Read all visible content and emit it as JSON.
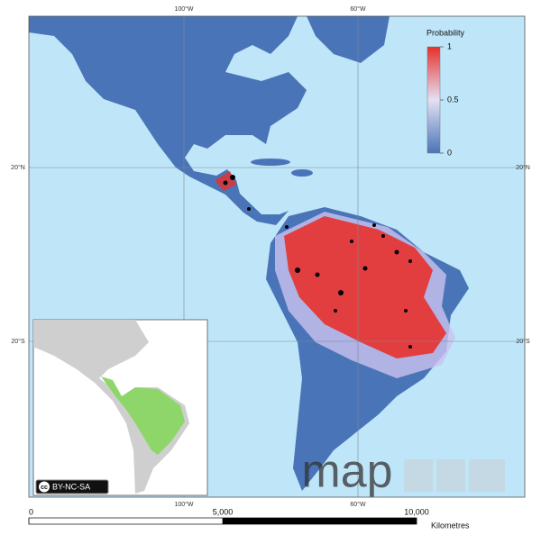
{
  "map": {
    "graticule": {
      "top": [
        "100°W",
        "60°W"
      ],
      "bottom": [
        "100°W",
        "60°W"
      ],
      "left": [
        "20°N",
        "20°S"
      ],
      "right": [
        "20°N",
        "20°S"
      ]
    },
    "legend": {
      "title": "Probability",
      "lim": [
        0,
        1
      ],
      "ticks": [
        0,
        0.5,
        1
      ]
    },
    "scale_bar": {
      "ticks": [
        0,
        {
          "value": 5000,
          "label": "5,000"
        },
        {
          "value": 10000,
          "label": "10,000"
        }
      ],
      "unit": "Kilometres"
    },
    "license": {
      "icon": "cc",
      "text": "BY-NC-SA"
    },
    "logo": "map"
  }
}
